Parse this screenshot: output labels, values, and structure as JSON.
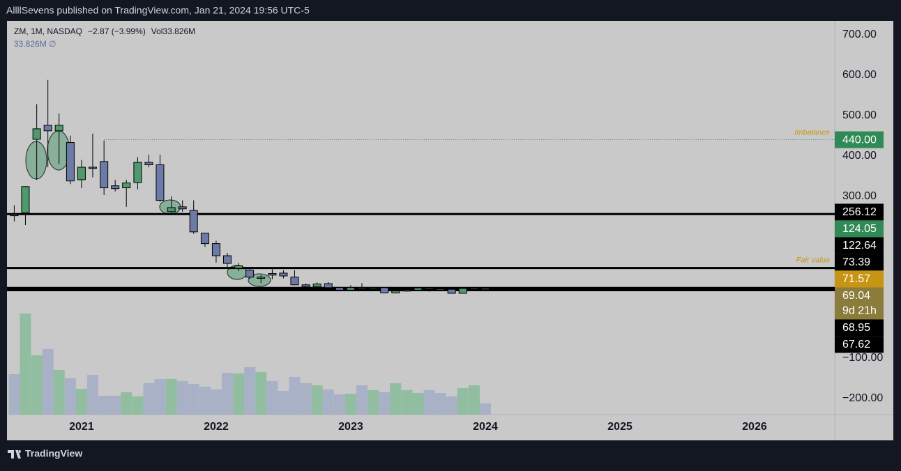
{
  "header": "AllllSevens published on TradingView.com, Jan 21, 2024 19:56 UTC-5",
  "footer": "TradingView",
  "chart_data": {
    "type": "candlestick",
    "legend": {
      "symbol": "ZM, 1M, NASDAQ",
      "change": "−2.87 (−3.99%)",
      "volume": "Vol33.826M",
      "volume_row": "33.826M  ∅"
    },
    "x": [
      2020.5,
      2020.583,
      2020.667,
      2020.75,
      2020.833,
      2020.917,
      2021,
      2021.083,
      2021.167,
      2021.25,
      2021.333,
      2021.417,
      2021.5,
      2021.583,
      2021.667,
      2021.75,
      2021.833,
      2021.917,
      2022,
      2022.083,
      2022.167,
      2022.25,
      2022.333,
      2022.417,
      2022.5,
      2022.583,
      2022.667,
      2022.75,
      2022.833,
      2022.917,
      2023,
      2023.083,
      2023.167,
      2023.25,
      2023.333,
      2023.417,
      2023.5,
      2023.583,
      2023.667,
      2023.75,
      2023.833,
      2023.917,
      2024
    ],
    "open": [
      255,
      259,
      441,
      476,
      462,
      433,
      341,
      372,
      386,
      326,
      321,
      334,
      384,
      378,
      262,
      274,
      265,
      209,
      183,
      153,
      122,
      117,
      97,
      109,
      110,
      100,
      81,
      76,
      84,
      74,
      68,
      74,
      73,
      74,
      61,
      67,
      68,
      73,
      71,
      70,
      60,
      72,
      72
    ],
    "high": [
      278,
      325,
      528,
      588,
      505,
      450,
      390,
      455,
      438,
      341,
      341,
      397,
      403,
      403,
      300,
      290,
      290,
      210,
      190,
      160,
      135,
      125,
      105,
      120,
      117,
      117,
      84,
      87,
      88,
      76,
      80,
      85,
      75,
      75,
      68,
      72,
      75,
      73,
      72,
      71,
      72,
      76,
      72
    ],
    "low": [
      238,
      229,
      341,
      372,
      380,
      330,
      320,
      347,
      303,
      312,
      274,
      317,
      372,
      286,
      258,
      262,
      207,
      175,
      136,
      125,
      115,
      95,
      85,
      95,
      97,
      80,
      73,
      70,
      70,
      66,
      65,
      70,
      70,
      60,
      60,
      64,
      66,
      64,
      68,
      59,
      59,
      68,
      68
    ],
    "close": [
      252,
      324,
      467,
      462,
      476,
      338,
      372,
      369,
      321,
      319,
      333,
      384,
      378,
      290,
      272,
      269,
      212,
      183,
      153,
      134,
      128,
      100,
      100,
      105,
      103,
      81,
      76,
      83,
      74,
      68,
      74,
      73,
      74,
      61,
      66,
      68,
      73,
      71,
      70,
      60,
      72,
      72,
      69.04
    ],
    "volume": [
      122.6,
      306.5,
      179.7,
      198.7,
      135.3,
      109.9,
      78.2,
      120.5,
      57.1,
      57.1,
      67.6,
      55.0,
      95.1,
      107.8,
      107.8,
      101.5,
      93.0,
      84.6,
      76.1,
      126.8,
      124.7,
      143.8,
      129.0,
      101.5,
      71.9,
      114.2,
      95.1,
      88.8,
      76.1,
      61.3,
      63.4,
      88.8,
      74.0,
      67.6,
      95.1,
      74.0,
      65.5,
      74.0,
      65.5,
      55.0,
      80.3,
      88.8,
      33.826
    ],
    "up_color": "#4f9a6c",
    "down_color": "#6c7aa6",
    "volume_up_color": "#7dba92",
    "volume_down_color": "#9ea8c6",
    "xlim": [
      2020.446,
      2026.596
    ],
    "xticks": [
      2021,
      2022,
      2023,
      2024,
      2025,
      2026
    ],
    "ylim": [
      -240,
      734
    ],
    "yticks": [
      {
        "value": 700,
        "label": "700.00"
      },
      {
        "value": 600,
        "label": "600.00"
      },
      {
        "value": 500,
        "label": "500.00"
      },
      {
        "value": 400,
        "label": "400.00"
      },
      {
        "value": 300,
        "label": "300.00"
      },
      {
        "value": -100,
        "label": "−100.00"
      },
      {
        "value": -200,
        "label": "−200.00"
      }
    ],
    "levels": [
      {
        "value": 440,
        "label": "440.00",
        "color": "#2f8a55",
        "line": "dotted",
        "text": "Imbalance",
        "start": 2021.167
      },
      {
        "value": 256.12,
        "color": "#000000",
        "line": "solid"
      },
      {
        "value": 124.05,
        "color": "#2f8a55",
        "line": "dotted",
        "text": "Fair value",
        "start": 2020.446
      },
      {
        "value": 122.64,
        "color": "#000000",
        "line": "solid"
      },
      {
        "value": 73.39,
        "color": "#000000",
        "line": "solid"
      },
      {
        "value": 71.57,
        "color": "#c89512",
        "line": "none"
      },
      {
        "value": 69.04,
        "color": "#8c7c3c",
        "line": "none",
        "countdown": "9d 21h"
      },
      {
        "value": 68.95,
        "color": "#000000",
        "line": "solid"
      },
      {
        "value": 67.62,
        "color": "#000000",
        "line": "solid"
      }
    ]
  }
}
